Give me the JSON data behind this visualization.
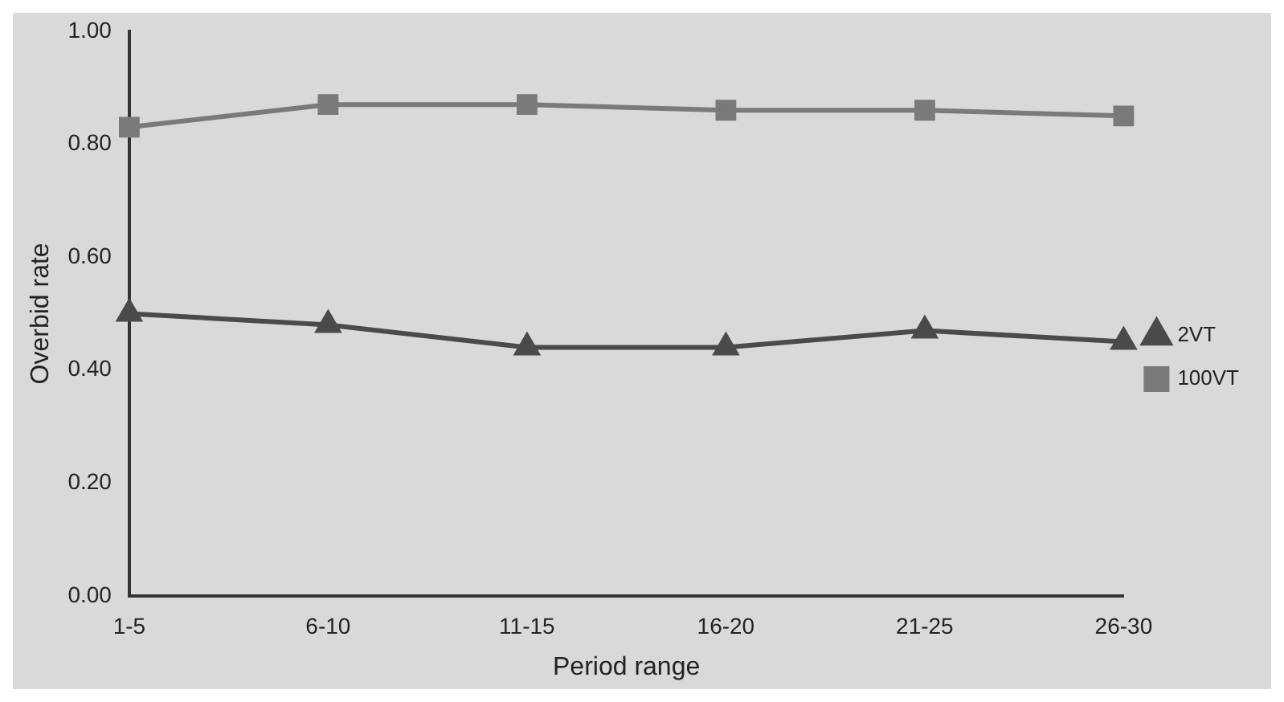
{
  "chart_data": {
    "type": "line",
    "xlabel": "Period range",
    "ylabel": "Overbid rate",
    "categories": [
      "1-5",
      "6-10",
      "11-15",
      "16-20",
      "21-25",
      "26-30"
    ],
    "series": [
      {
        "name": "2VT",
        "color": "#4a4a4a",
        "marker": "triangle",
        "values": [
          0.5,
          0.48,
          0.44,
          0.44,
          0.47,
          0.45
        ]
      },
      {
        "name": "100VT",
        "color": "#7a7a7a",
        "marker": "square",
        "values": [
          0.83,
          0.87,
          0.87,
          0.86,
          0.86,
          0.85
        ]
      }
    ],
    "ylim": [
      0,
      1
    ],
    "yticks": [
      {
        "value": 0,
        "label": "0.00"
      },
      {
        "value": 0.2,
        "label": "0.20"
      },
      {
        "value": 0.4,
        "label": "0.40"
      },
      {
        "value": 0.6,
        "label": "0.60"
      },
      {
        "value": 0.8,
        "label": "0.80"
      },
      {
        "value": 1,
        "label": "1.00"
      }
    ],
    "grid": false,
    "legend": "right",
    "line_style": "solid"
  }
}
